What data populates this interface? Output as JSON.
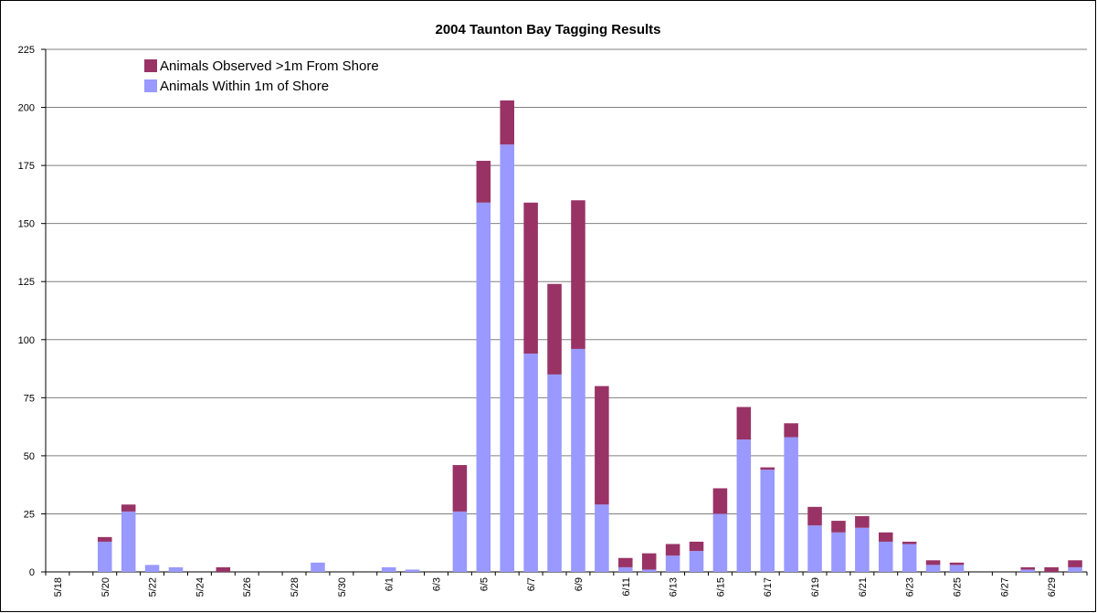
{
  "chart_data": {
    "type": "stacked_bar",
    "title": "2004 Taunton Bay Tagging Results",
    "categories": [
      "5/18",
      null,
      "5/20",
      null,
      "5/22",
      null,
      "5/24",
      null,
      "5/26",
      null,
      "5/28",
      null,
      "5/30",
      null,
      "6/1",
      null,
      "6/3",
      null,
      "6/5",
      null,
      "6/7",
      null,
      "6/9",
      null,
      "6/11",
      null,
      "6/13",
      null,
      "6/15",
      null,
      "6/17",
      null,
      "6/19",
      null,
      "6/21",
      null,
      "6/23",
      null,
      "6/25",
      null,
      "6/27",
      null,
      "6/29",
      null
    ],
    "series": [
      {
        "name": "Animals Within 1m of Shore",
        "color": "#9999ff",
        "values": [
          0,
          0,
          13,
          26,
          3,
          2,
          0,
          0,
          0,
          0,
          0,
          4,
          0,
          0,
          2,
          1,
          0,
          26,
          159,
          184,
          94,
          85,
          96,
          29,
          2,
          1,
          7,
          9,
          25,
          57,
          44,
          58,
          20,
          17,
          19,
          13,
          12,
          3,
          3,
          0,
          0,
          1,
          0,
          2
        ]
      },
      {
        "name": "Animals Observed >1m From Shore",
        "color": "#993366",
        "values": [
          0,
          0,
          2,
          3,
          0,
          0,
          0,
          2,
          0,
          0,
          0,
          0,
          0,
          0,
          0,
          0,
          0,
          20,
          18,
          19,
          65,
          39,
          64,
          51,
          4,
          7,
          5,
          4,
          11,
          14,
          1,
          6,
          8,
          5,
          5,
          4,
          1,
          2,
          1,
          0,
          0,
          1,
          2,
          3
        ]
      }
    ],
    "ylim": [
      0,
      225
    ],
    "yticks": [
      0,
      25,
      50,
      75,
      100,
      125,
      150,
      175,
      200,
      225
    ],
    "grid": true
  }
}
